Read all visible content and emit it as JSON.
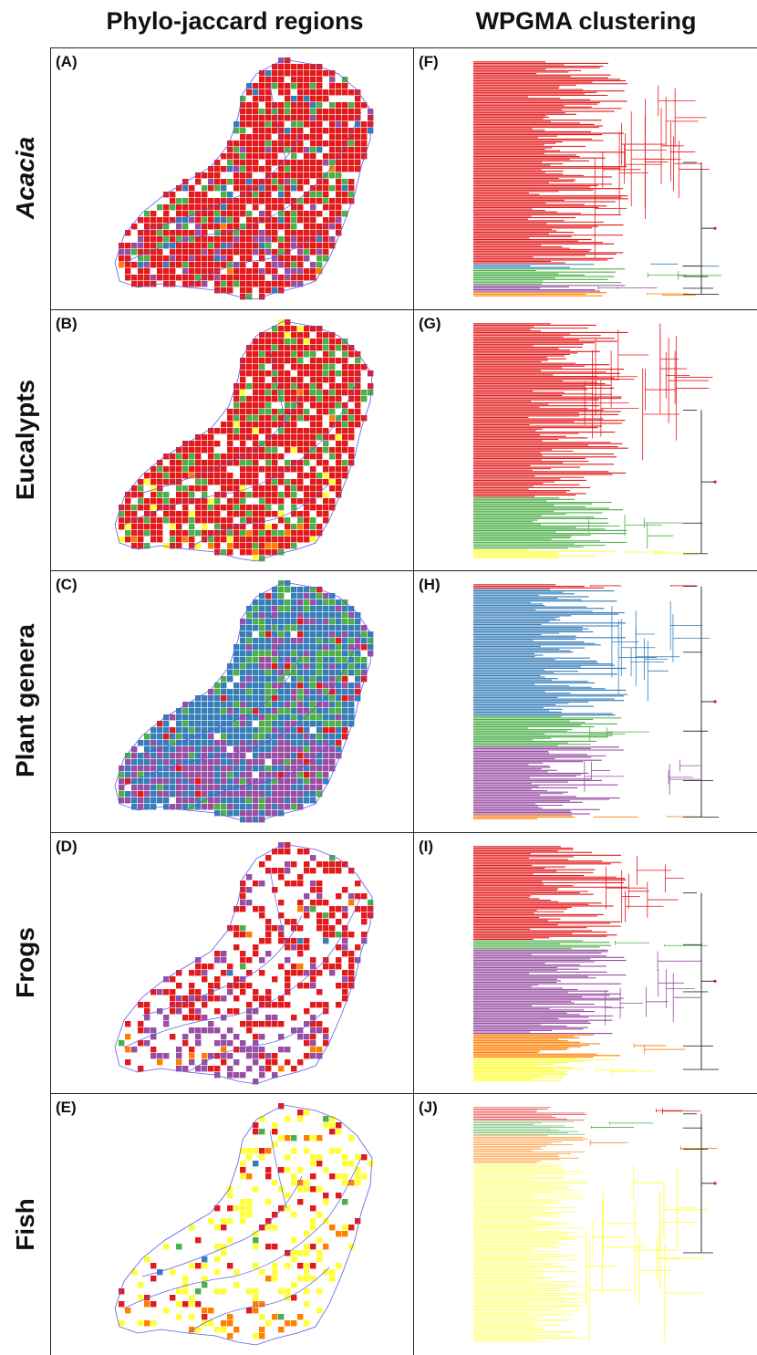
{
  "headers": {
    "left": "Phylo-jaccard regions",
    "right": "WPGMA clustering"
  },
  "colors": {
    "red": "#e31a1c",
    "green": "#4daf4a",
    "blue": "#377eb8",
    "purple": "#984ea3",
    "orange": "#ff7f00",
    "yellow": "#ffff33",
    "river": "#5a5ae6"
  },
  "rows": [
    {
      "label": "Acacia",
      "italic": true,
      "map_letter": "(A)",
      "tree_letter": "(F)",
      "map_mix": {
        "red": 0.8,
        "green": 0.09,
        "blue": 0.04,
        "purple": 0.06,
        "orange": 0.01
      },
      "map_hole_rate": 0.14,
      "tree_clades": [
        {
          "color": "red",
          "share": 0.86
        },
        {
          "color": "blue",
          "share": 0.02
        },
        {
          "color": "green",
          "share": 0.07
        },
        {
          "color": "purple",
          "share": 0.03
        },
        {
          "color": "orange",
          "share": 0.02
        }
      ]
    },
    {
      "label": "Eucalypts",
      "italic": false,
      "map_letter": "(B)",
      "tree_letter": "(G)",
      "map_mix": {
        "red": 0.78,
        "green": 0.17,
        "yellow": 0.03,
        "orange": 0.02
      },
      "map_hole_rate": 0.15,
      "tree_clades": [
        {
          "color": "red",
          "share": 0.74
        },
        {
          "color": "green",
          "share": 0.22
        },
        {
          "color": "yellow",
          "share": 0.04
        }
      ]
    },
    {
      "label": "Plant genera",
      "italic": false,
      "map_letter": "(C)",
      "tree_letter": "(H)",
      "map_mix": {
        "blue": 0.5,
        "purple": 0.34,
        "green": 0.13,
        "red": 0.03
      },
      "map_hole_rate": 0.03,
      "tree_clades": [
        {
          "color": "red",
          "share": 0.02
        },
        {
          "color": "blue",
          "share": 0.54
        },
        {
          "color": "green",
          "share": 0.13
        },
        {
          "color": "purple",
          "share": 0.29
        },
        {
          "color": "orange",
          "share": 0.02
        }
      ]
    },
    {
      "label": "Frogs",
      "italic": false,
      "map_letter": "(D)",
      "tree_letter": "(I)",
      "map_mix": {
        "red": 0.6,
        "purple": 0.32,
        "orange": 0.05,
        "green": 0.02,
        "blue": 0.01
      },
      "map_hole_rate": 0.55,
      "tree_clades": [
        {
          "color": "red",
          "share": 0.4
        },
        {
          "color": "green",
          "share": 0.04
        },
        {
          "color": "purple",
          "share": 0.36
        },
        {
          "color": "orange",
          "share": 0.1
        },
        {
          "color": "yellow",
          "share": 0.1
        }
      ]
    },
    {
      "label": "Fish",
      "italic": false,
      "map_letter": "(E)",
      "tree_letter": "(J)",
      "map_mix": {
        "yellow": 0.62,
        "orange": 0.18,
        "red": 0.14,
        "green": 0.04,
        "blue": 0.02
      },
      "map_hole_rate": 0.72,
      "tree_clades": [
        {
          "color": "red",
          "share": 0.06
        },
        {
          "color": "green",
          "share": 0.06
        },
        {
          "color": "orange",
          "share": 0.12
        },
        {
          "color": "yellow",
          "share": 0.76
        }
      ]
    }
  ]
}
